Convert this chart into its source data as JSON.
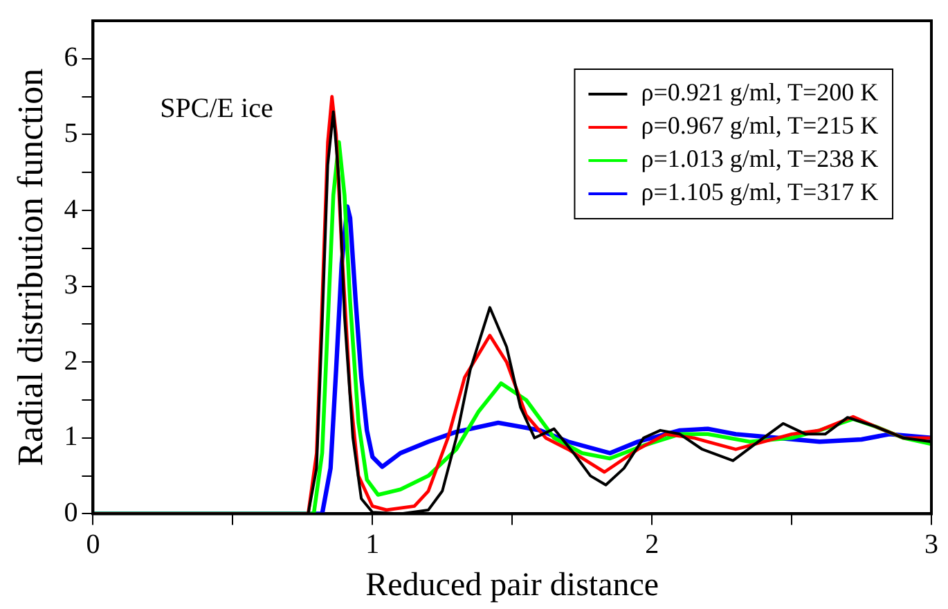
{
  "chart_data": {
    "type": "line",
    "xlabel": "Reduced pair distance",
    "ylabel": "Radial distribution function",
    "annotations": [
      "SPC/E ice"
    ],
    "xlim": [
      0,
      3
    ],
    "xticks": [
      0,
      {
        "value": 0.5,
        "label": null
      },
      1,
      {
        "value": 1.5,
        "label": null
      },
      2,
      {
        "value": 2.5,
        "label": null
      },
      3
    ],
    "ylim": [
      0,
      6.5
    ],
    "yticks": [
      0,
      {
        "value": 0.5,
        "label": null
      },
      1,
      {
        "value": 1.5,
        "label": null
      },
      2,
      {
        "value": 2.5,
        "label": null
      },
      3,
      {
        "value": 3.5,
        "label": null
      },
      4,
      {
        "value": 4.5,
        "label": null
      },
      5,
      {
        "value": 5.5,
        "label": null
      },
      6
    ],
    "grid": false,
    "legend": "top right",
    "marker": "none",
    "line_style": "solid",
    "series": [
      {
        "name": "ρ=0.921 g/ml, T=200 K",
        "color": "#000000",
        "x": [
          0,
          0.77,
          0.8,
          0.82,
          0.84,
          0.86,
          0.88,
          0.9,
          0.93,
          0.96,
          1.0,
          1.1,
          1.2,
          1.25,
          1.3,
          1.35,
          1.42,
          1.48,
          1.53,
          1.58,
          1.65,
          1.72,
          1.78,
          1.835,
          1.9,
          1.97,
          2.03,
          2.1,
          2.18,
          2.29,
          2.38,
          2.47,
          2.55,
          2.62,
          2.7,
          2.8,
          2.9,
          3.0
        ],
        "values": [
          0,
          0,
          0.6,
          2.5,
          4.6,
          5.3,
          4.4,
          2.6,
          1.0,
          0.2,
          0.02,
          0,
          0.05,
          0.3,
          1.0,
          1.9,
          2.72,
          2.2,
          1.4,
          1.0,
          1.12,
          0.8,
          0.5,
          0.38,
          0.6,
          1.0,
          1.1,
          1.05,
          0.85,
          0.7,
          0.95,
          1.19,
          1.05,
          1.05,
          1.27,
          1.15,
          1.0,
          0.95
        ]
      },
      {
        "name": "ρ=0.967 g/ml, T=215 K",
        "color": "#ff0000",
        "x": [
          0,
          0.77,
          0.8,
          0.82,
          0.84,
          0.855,
          0.87,
          0.89,
          0.92,
          0.95,
          1.0,
          1.05,
          1.15,
          1.2,
          1.27,
          1.33,
          1.42,
          1.48,
          1.55,
          1.62,
          1.7,
          1.83,
          1.95,
          2.05,
          2.15,
          2.3,
          2.4,
          2.5,
          2.6,
          2.72,
          2.8,
          2.9,
          3.0
        ],
        "values": [
          0,
          0,
          0.8,
          2.8,
          4.9,
          5.5,
          5.0,
          3.5,
          1.6,
          0.5,
          0.1,
          0.05,
          0.1,
          0.3,
          1.0,
          1.8,
          2.35,
          2.0,
          1.3,
          1.0,
          0.85,
          0.55,
          0.85,
          1.05,
          1.0,
          0.85,
          0.95,
          1.05,
          1.1,
          1.28,
          1.15,
          1.0,
          1.0
        ]
      },
      {
        "name": "ρ=1.013 g/ml, T=238 K",
        "color": "#00ff00",
        "x": [
          0,
          0.79,
          0.82,
          0.84,
          0.86,
          0.88,
          0.9,
          0.92,
          0.95,
          0.98,
          1.02,
          1.1,
          1.2,
          1.3,
          1.38,
          1.46,
          1.55,
          1.65,
          1.75,
          1.85,
          1.97,
          2.1,
          2.2,
          2.35,
          2.5,
          2.6,
          2.72,
          2.8,
          2.9,
          3.0
        ],
        "values": [
          0,
          0,
          0.8,
          2.5,
          4.2,
          4.9,
          4.2,
          2.8,
          1.2,
          0.45,
          0.25,
          0.32,
          0.5,
          0.85,
          1.35,
          1.72,
          1.5,
          1.0,
          0.8,
          0.73,
          0.9,
          1.05,
          1.05,
          0.95,
          1.0,
          1.1,
          1.25,
          1.15,
          1.0,
          0.92
        ]
      },
      {
        "name": "ρ=1.105 g/ml, T=317 K",
        "color": "#0000ff",
        "x": [
          0,
          0.82,
          0.85,
          0.87,
          0.89,
          0.91,
          0.92,
          0.94,
          0.96,
          0.98,
          1.0,
          1.035,
          1.1,
          1.2,
          1.3,
          1.45,
          1.6,
          1.7,
          1.85,
          1.95,
          2.1,
          2.2,
          2.3,
          2.45,
          2.6,
          2.75,
          2.85,
          3.0
        ],
        "values": [
          0,
          0,
          0.6,
          1.9,
          3.3,
          4.05,
          3.9,
          2.8,
          1.8,
          1.1,
          0.75,
          0.62,
          0.8,
          0.95,
          1.08,
          1.2,
          1.1,
          0.95,
          0.8,
          0.95,
          1.1,
          1.12,
          1.05,
          1.0,
          0.95,
          0.98,
          1.05,
          1.0
        ]
      }
    ]
  }
}
